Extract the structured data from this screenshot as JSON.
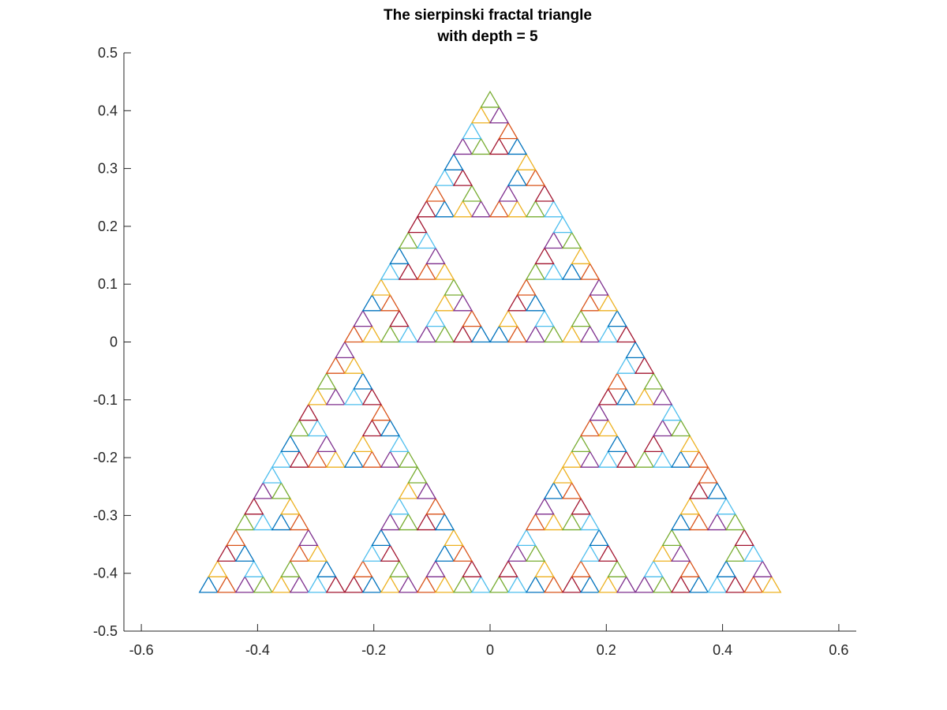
{
  "chart_data": {
    "type": "line",
    "title": [
      "The sierpinski fractal triangle",
      "with depth = 5"
    ],
    "xlabel": "",
    "ylabel": "",
    "xlim": [
      -0.63,
      0.63
    ],
    "ylim": [
      -0.5,
      0.5
    ],
    "xticks": [
      -0.6,
      -0.4,
      -0.2,
      0,
      0.2,
      0.4,
      0.6
    ],
    "xtick_labels": [
      "-0.6",
      "-0.4",
      "-0.2",
      "0",
      "0.2",
      "0.4",
      "0.6"
    ],
    "yticks": [
      -0.5,
      -0.4,
      -0.3,
      -0.2,
      -0.1,
      0,
      0.1,
      0.2,
      0.3,
      0.4,
      0.5
    ],
    "ytick_labels": [
      "-0.5",
      "-0.4",
      "-0.3",
      "-0.2",
      "-0.1",
      "0",
      "0.1",
      "0.2",
      "0.3",
      "0.4",
      "0.5"
    ],
    "grid": false,
    "box": "off",
    "fractal": {
      "depth": 5,
      "vertices": [
        [
          -0.5,
          -0.433
        ],
        [
          0.5,
          -0.433
        ],
        [
          0,
          0.433
        ]
      ],
      "triangle_count": 243
    },
    "color_order": [
      "#0072BD",
      "#D95319",
      "#EDB120",
      "#7E2F8E",
      "#77AC30",
      "#4DBEEE",
      "#A2142F"
    ]
  }
}
